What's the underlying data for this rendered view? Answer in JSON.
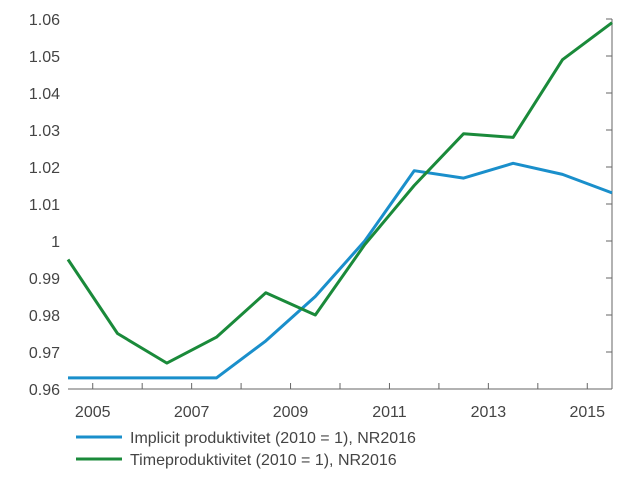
{
  "chart_data": {
    "type": "line",
    "title": "",
    "xlabel": "",
    "ylabel": "",
    "x": [
      2004.5,
      2005.5,
      2006.5,
      2007.5,
      2008.5,
      2009.5,
      2010.5,
      2011.5,
      2012.5,
      2013.5,
      2014.5,
      2015.5
    ],
    "xlim": [
      2004.5,
      2015.5
    ],
    "ylim": [
      0.96,
      1.06
    ],
    "x_ticks": [
      2005,
      2007,
      2009,
      2011,
      2013,
      2015
    ],
    "x_tick_labels": [
      "2005",
      "2007",
      "2009",
      "2011",
      "2013",
      "2015"
    ],
    "y_ticks": [
      0.96,
      0.97,
      0.98,
      0.99,
      1.0,
      1.01,
      1.02,
      1.03,
      1.04,
      1.05,
      1.06
    ],
    "y_tick_labels": [
      "0.96",
      "0.97",
      "0.98",
      "0.99",
      "1",
      "1.01",
      "1.02",
      "1.03",
      "1.04",
      "1.05",
      "1.06"
    ],
    "grid": false,
    "legend_position": "bottom",
    "series": [
      {
        "name": "Implicit produktivitet (2010 = 1), NR2016",
        "color": "#1a8fcb",
        "values": [
          0.963,
          0.963,
          0.963,
          0.963,
          0.973,
          0.985,
          1.0,
          1.019,
          1.017,
          1.021,
          1.018,
          1.013
        ]
      },
      {
        "name": "Timeproduktivitet (2010 = 1), NR2016",
        "color": "#1a8a3a",
        "values": [
          0.995,
          0.975,
          0.967,
          0.974,
          0.986,
          0.98,
          0.999,
          1.015,
          1.029,
          1.028,
          1.049,
          1.059
        ]
      }
    ]
  }
}
